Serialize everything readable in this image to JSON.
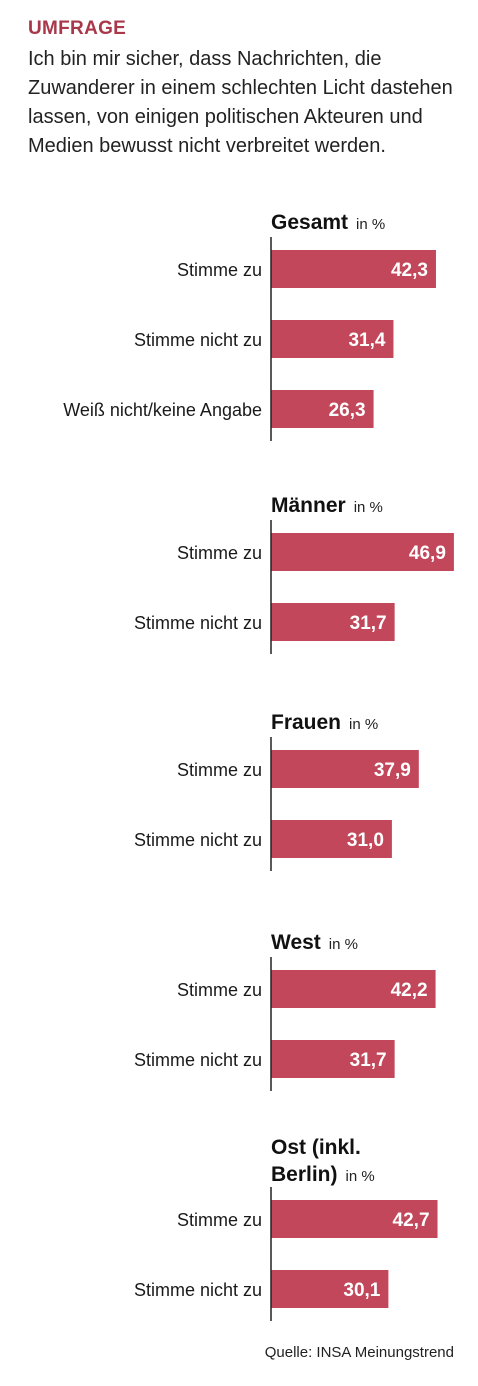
{
  "kicker": "UMFRAGE",
  "question": "Ich bin mir sicher, dass Nachrichten, die Zuwanderer in einem schlechten Licht dastehen lassen, von einigen politischen Akteuren und Medien bewusst nicht verbreitet werden.",
  "source": "Quelle: INSA Meinungstrend",
  "colors": {
    "bar": "#c2475a",
    "kicker": "#a8384a"
  },
  "chart_data": {
    "type": "bar",
    "orientation": "horizontal",
    "unit": "in %",
    "groups": [
      {
        "title": [
          "Gesamt"
        ],
        "unit": "in %",
        "categories": [
          "Stimme zu",
          "Stimme nicht zu",
          "Weiß nicht/keine Angabe"
        ],
        "values": [
          42.3,
          31.4,
          26.3
        ],
        "labels": [
          "42,3",
          "31,4",
          "26,3"
        ]
      },
      {
        "title": [
          "Männer"
        ],
        "unit": "in %",
        "categories": [
          "Stimme zu",
          "Stimme nicht zu"
        ],
        "values": [
          46.9,
          31.7
        ],
        "labels": [
          "46,9",
          "31,7"
        ]
      },
      {
        "title": [
          "Frauen"
        ],
        "unit": "in %",
        "categories": [
          "Stimme zu",
          "Stimme nicht zu"
        ],
        "values": [
          37.9,
          31.0
        ],
        "labels": [
          "37,9",
          "31,0"
        ]
      },
      {
        "title": [
          "West"
        ],
        "unit": "in %",
        "categories": [
          "Stimme zu",
          "Stimme nicht zu"
        ],
        "values": [
          42.2,
          31.7
        ],
        "labels": [
          "42,2",
          "31,7"
        ]
      },
      {
        "title": [
          "Ost (inkl.",
          "Berlin)"
        ],
        "unit": "in %",
        "categories": [
          "Stimme zu",
          "Stimme nicht zu"
        ],
        "values": [
          42.7,
          30.1
        ],
        "labels": [
          "42,7",
          "30,1"
        ]
      }
    ]
  }
}
